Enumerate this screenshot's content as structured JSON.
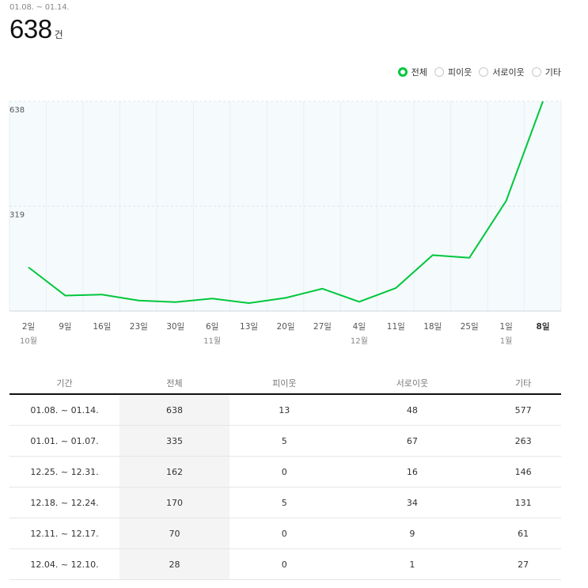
{
  "summary": {
    "period": "01.08. ~ 01.14.",
    "total": "638",
    "unit": "건"
  },
  "legend": {
    "selected": "전체",
    "items": [
      "전체",
      "피이웃",
      "서로이웃",
      "기타"
    ],
    "accent_color": "#00c73c"
  },
  "chart_data": {
    "type": "line",
    "y_ticks": [
      "638",
      "319"
    ],
    "ylim": [
      0,
      638
    ],
    "grid": true,
    "line_color": "#00c73c",
    "categories": [
      "2일",
      "9일",
      "16일",
      "23일",
      "30일",
      "6일",
      "13일",
      "20일",
      "27일",
      "4일",
      "11일",
      "18일",
      "25일",
      "1일",
      "8일"
    ],
    "month_labels": [
      "10월",
      "",
      "",
      "",
      "",
      "11월",
      "",
      "",
      "",
      "12월",
      "",
      "",
      "",
      "1월",
      ""
    ],
    "bold_category": "8일",
    "series": [
      {
        "values": [
          133,
          47,
          50,
          32,
          27,
          38,
          24,
          40,
          68,
          28,
          70,
          170,
          162,
          335,
          638
        ]
      }
    ]
  },
  "table": {
    "headers": [
      "기간",
      "전체",
      "피이웃",
      "서로이웃",
      "기타"
    ],
    "rows": [
      [
        "01.08. ~ 01.14.",
        "638",
        "13",
        "48",
        "577"
      ],
      [
        "01.01. ~ 01.07.",
        "335",
        "5",
        "67",
        "263"
      ],
      [
        "12.25. ~ 12.31.",
        "162",
        "0",
        "16",
        "146"
      ],
      [
        "12.18. ~ 12.24.",
        "170",
        "5",
        "34",
        "131"
      ],
      [
        "12.11. ~ 12.17.",
        "70",
        "0",
        "9",
        "61"
      ],
      [
        "12.04. ~ 12.10.",
        "28",
        "0",
        "1",
        "27"
      ]
    ]
  }
}
